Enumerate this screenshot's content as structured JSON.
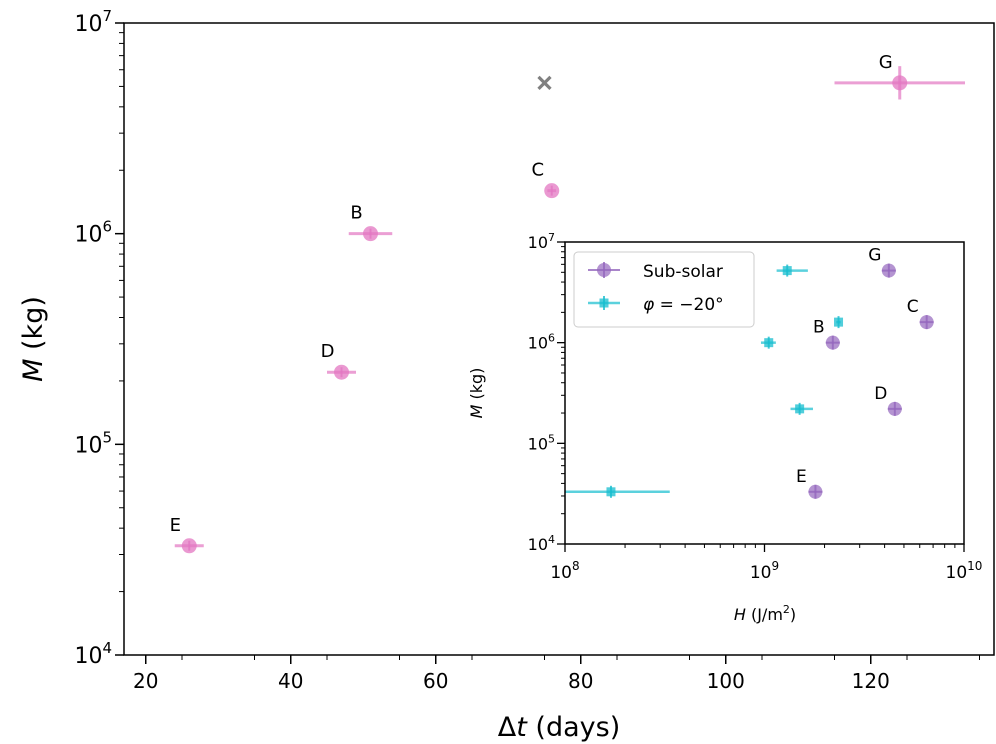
{
  "chart_data": [
    {
      "type": "scatter",
      "title": "",
      "xlabel_prefix": "Δ",
      "xlabel_var": "t",
      "xlabel_suffix": " (days)",
      "ylabel_var": "M",
      "ylabel_suffix": " (kg)",
      "xlim": [
        17,
        137
      ],
      "ylim": [
        10000,
        10000000
      ],
      "yscale": "log",
      "x_ticks": [
        20,
        40,
        60,
        80,
        100,
        120
      ],
      "y_ticks": [
        {
          "value": 10000,
          "base": "10",
          "exp": "4"
        },
        {
          "value": 100000,
          "base": "10",
          "exp": "5"
        },
        {
          "value": 1000000,
          "base": "10",
          "exp": "6"
        },
        {
          "value": 10000000,
          "base": "10",
          "exp": "7"
        }
      ],
      "series": [
        {
          "color": "#e377c2",
          "marker": "circle",
          "points": [
            {
              "label": "B",
              "x": 51,
              "y": 1000000,
              "xerr": 3
            },
            {
              "label": "C",
              "x": 76,
              "y": 1600000,
              "xerr": 0.6
            },
            {
              "label": "D",
              "x": 47,
              "y": 220000,
              "xerr": 2
            },
            {
              "label": "E",
              "x": 26,
              "y": 33000,
              "xerr": 2
            },
            {
              "label": "G",
              "x": 124,
              "y": 5200000,
              "xerr": 9,
              "yerr_factor": 1.2
            }
          ]
        },
        {
          "color": "#808080",
          "marker": "x",
          "points": [
            {
              "label": "",
              "x": 75,
              "y": 5200000
            }
          ]
        }
      ]
    },
    {
      "type": "scatter",
      "title": "",
      "xlabel_var": "H",
      "xlabel_suffix_pre": " (J/m",
      "xlabel_suffix_sup": "2",
      "xlabel_suffix_post": ")",
      "ylabel_var": "M",
      "ylabel_suffix": " (kg)",
      "xscale": "log",
      "yscale": "log",
      "xlim": [
        100000000,
        10000000000
      ],
      "ylim": [
        10000,
        10000000
      ],
      "x_ticks": [
        {
          "value": 100000000,
          "base": "10",
          "exp": "8"
        },
        {
          "value": 1000000000,
          "base": "10",
          "exp": "9"
        },
        {
          "value": 10000000000,
          "base": "10",
          "exp": "10"
        }
      ],
      "y_ticks": [
        {
          "value": 10000,
          "base": "10",
          "exp": "4"
        },
        {
          "value": 100000,
          "base": "10",
          "exp": "5"
        },
        {
          "value": 1000000,
          "base": "10",
          "exp": "6"
        },
        {
          "value": 10000000,
          "base": "10",
          "exp": "7"
        }
      ],
      "legend": "top-left",
      "series": [
        {
          "name": "Sub-solar",
          "color": "#9467bd",
          "marker": "circle",
          "points": [
            {
              "label": "B",
              "x": 2200000000,
              "y": 1000000
            },
            {
              "label": "C",
              "x": 6500000000,
              "y": 1600000
            },
            {
              "label": "D",
              "x": 4500000000,
              "y": 220000
            },
            {
              "label": "E",
              "x": 1800000000,
              "y": 33000
            },
            {
              "label": "G",
              "x": 4200000000,
              "y": 5200000
            }
          ]
        },
        {
          "name_var": "φ",
          "name_rest": " = −20°",
          "color": "#17becf",
          "marker": "square",
          "points": [
            {
              "x": 170000000,
              "y": 33000,
              "xerr_low": 70000000,
              "xerr_high": 165000000
            },
            {
              "x": 1050000000,
              "y": 1000000,
              "xerr_low": 90000000,
              "xerr_high": 90000000
            },
            {
              "x": 1300000000,
              "y": 5200000,
              "xerr_low": 150000000,
              "xerr_high": 350000000
            },
            {
              "x": 1500000000,
              "y": 220000,
              "xerr_low": 150000000,
              "xerr_high": 250000000
            },
            {
              "x": 2350000000,
              "y": 1600000,
              "xerr_low": 60000000,
              "xerr_high": 60000000
            }
          ]
        }
      ]
    }
  ]
}
